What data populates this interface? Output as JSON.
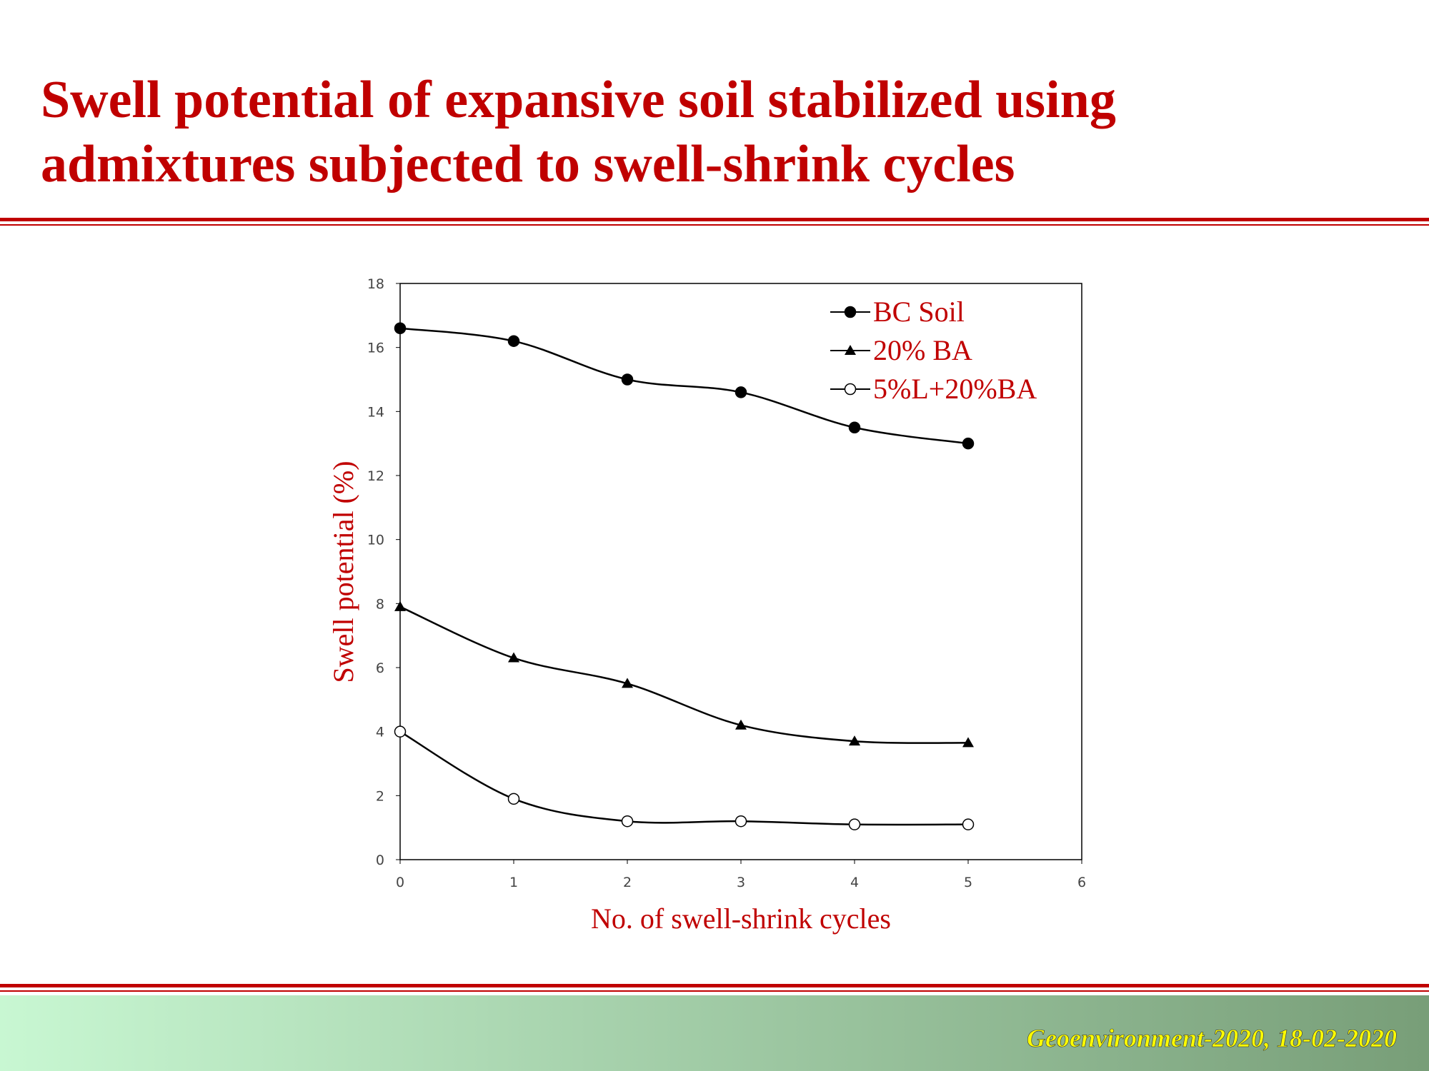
{
  "slide": {
    "title_lines": [
      "Swell potential of expansive soil stabilized using",
      "admixtures subjected to swell-shrink cycles"
    ],
    "footer": "Geoenvironment-2020, 18-02-2020"
  },
  "chart_data": {
    "type": "line",
    "smooth": true,
    "grid": false,
    "legend": "upper right",
    "x_label": "No. of swell-shrink cycles",
    "y_label": "Swell potential (%)",
    "x": [
      0,
      1,
      2,
      3,
      4,
      5
    ],
    "series": [
      {
        "name": "BC Soil",
        "color": "#000000",
        "marker": "filled-circle",
        "values": [
          16.6,
          16.2,
          15.0,
          14.6,
          13.5,
          13.0
        ]
      },
      {
        "name": "20% BA",
        "color": "#000000",
        "marker": "filled-triangle",
        "values": [
          7.9,
          6.3,
          5.5,
          4.2,
          3.7,
          3.65
        ]
      },
      {
        "name": "5%L+20%BA",
        "color": "#000000",
        "marker": "open-circle",
        "values": [
          4.0,
          1.9,
          1.2,
          1.2,
          1.1,
          1.1
        ]
      }
    ],
    "xlim": [
      0,
      6
    ],
    "xticks": [
      0,
      1,
      2,
      3,
      4,
      5,
      6
    ],
    "ylim": [
      0,
      18
    ],
    "yticks": [
      0,
      2,
      4,
      6,
      8,
      10,
      12,
      14,
      16,
      18
    ]
  }
}
